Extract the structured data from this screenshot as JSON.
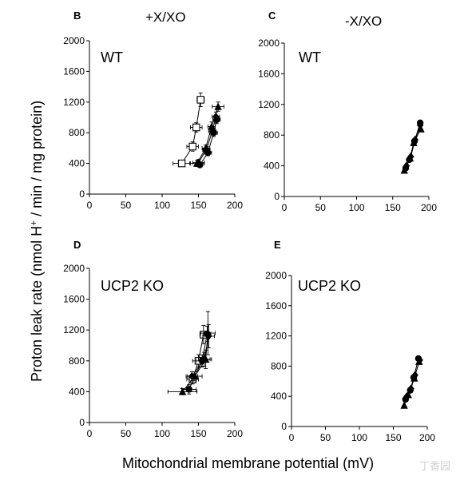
{
  "figure": {
    "ylabel_pre": "Proton leak rate (nmol H",
    "ylabel_sup": "+",
    "ylabel_post": " / min / mg protein)",
    "xlabel": "Mitochondrial membrane potential (mV)",
    "col_left": "+X/XO",
    "col_right": "-X/XO",
    "watermark": "丁香园"
  },
  "chart_data": [
    {
      "panel": "B",
      "label": "WT",
      "type": "scatter",
      "xlim": [
        0,
        200
      ],
      "ylim": [
        0,
        2000
      ],
      "xticks": [
        0,
        50,
        100,
        150,
        200
      ],
      "yticks": [
        0,
        400,
        800,
        1200,
        1600,
        2000
      ],
      "series": [
        {
          "marker": "square-open",
          "points": [
            [
              127,
              400,
              12,
              30
            ],
            [
              142,
              620,
              8,
              60
            ],
            [
              147,
              870,
              8,
              60
            ],
            [
              153,
              1230,
              5,
              90
            ]
          ]
        },
        {
          "marker": "circle-filled",
          "points": [
            [
              152,
              380,
              0,
              0
            ],
            [
              163,
              540,
              5,
              40
            ],
            [
              171,
              800,
              5,
              50
            ],
            [
              175,
              970,
              5,
              50
            ]
          ]
        },
        {
          "marker": "diamond-filled",
          "points": [
            [
              150,
              410,
              8,
              40
            ],
            [
              161,
              580,
              5,
              40
            ],
            [
              169,
              820,
              5,
              50
            ],
            [
              174,
              1010,
              5,
              60
            ]
          ]
        },
        {
          "marker": "triangle-filled",
          "points": [
            [
              148,
              400,
              10,
              40
            ],
            [
              160,
              600,
              5,
              40
            ],
            [
              168,
              880,
              5,
              60
            ],
            [
              177,
              1140,
              8,
              60
            ]
          ]
        }
      ]
    },
    {
      "panel": "C",
      "label": "WT",
      "type": "scatter",
      "xlim": [
        0,
        200
      ],
      "ylim": [
        0,
        2000
      ],
      "xticks": [
        0,
        50,
        100,
        150,
        200
      ],
      "yticks": [
        0,
        400,
        800,
        1200,
        1600,
        2000
      ],
      "series": [
        {
          "marker": "circle-filled",
          "points": [
            [
              168,
              370,
              0,
              0
            ],
            [
              173,
              480,
              0,
              0
            ],
            [
              180,
              720,
              0,
              0
            ],
            [
              188,
              960,
              0,
              0
            ]
          ]
        },
        {
          "marker": "diamond-filled",
          "points": [
            [
              169,
              400,
              0,
              0
            ],
            [
              175,
              520,
              0,
              0
            ],
            [
              181,
              740,
              0,
              0
            ],
            [
              188,
              930,
              0,
              0
            ]
          ]
        },
        {
          "marker": "triangle-filled",
          "points": [
            [
              166,
              340,
              0,
              0
            ],
            [
              174,
              500,
              0,
              0
            ],
            [
              179,
              700,
              0,
              0
            ],
            [
              189,
              880,
              0,
              0
            ]
          ]
        }
      ]
    },
    {
      "panel": "D",
      "label": "UCP2 KO",
      "type": "scatter",
      "xlim": [
        0,
        200
      ],
      "ylim": [
        0,
        2000
      ],
      "xticks": [
        0,
        50,
        100,
        150,
        200
      ],
      "yticks": [
        0,
        400,
        800,
        1200,
        1600,
        2000
      ],
      "series": [
        {
          "marker": "square-open",
          "points": [
            [
              142,
              560,
              8,
              60
            ],
            [
              150,
              800,
              8,
              80
            ],
            [
              157,
              1140,
              5,
              120
            ]
          ]
        },
        {
          "marker": "circle-filled",
          "points": [
            [
              137,
              430,
              10,
              60
            ],
            [
              155,
              800,
              8,
              80
            ],
            [
              162,
              1150,
              5,
              100
            ]
          ]
        },
        {
          "marker": "diamond-filled",
          "points": [
            [
              141,
              600,
              8,
              60
            ],
            [
              158,
              820,
              8,
              90
            ],
            [
              164,
              1120,
              8,
              150
            ]
          ]
        },
        {
          "marker": "triangle-filled",
          "points": [
            [
              128,
              400,
              20,
              40
            ],
            [
              145,
              600,
              10,
              60
            ],
            [
              160,
              820,
              8,
              120
            ],
            [
              163,
              1160,
              10,
              280
            ]
          ]
        }
      ]
    },
    {
      "panel": "E",
      "label": "UCP2 KO",
      "type": "scatter",
      "xlim": [
        0,
        200
      ],
      "ylim": [
        0,
        2000
      ],
      "xticks": [
        0,
        50,
        100,
        150,
        200
      ],
      "yticks": [
        0,
        400,
        800,
        1200,
        1600,
        2000
      ],
      "series": [
        {
          "marker": "circle-filled",
          "points": [
            [
              168,
              360,
              0,
              0
            ],
            [
              175,
              480,
              0,
              0
            ],
            [
              180,
              650,
              0,
              0
            ],
            [
              187,
              900,
              0,
              0
            ]
          ]
        },
        {
          "marker": "diamond-filled",
          "points": [
            [
              170,
              400,
              0,
              0
            ],
            [
              176,
              500,
              0,
              0
            ],
            [
              182,
              680,
              0,
              0
            ],
            [
              189,
              880,
              0,
              0
            ]
          ]
        },
        {
          "marker": "triangle-filled",
          "points": [
            [
              166,
              280,
              0,
              0
            ],
            [
              172,
              420,
              0,
              0
            ],
            [
              181,
              640,
              0,
              0
            ],
            [
              188,
              860,
              0,
              0
            ]
          ]
        }
      ]
    }
  ]
}
